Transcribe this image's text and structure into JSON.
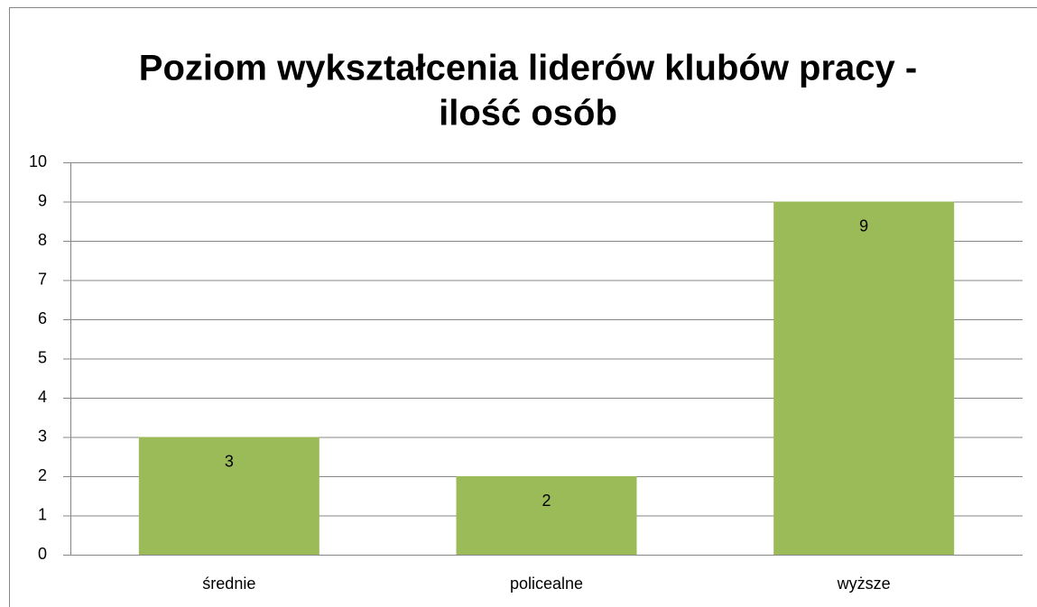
{
  "chart_data": {
    "type": "bar",
    "title": [
      "Poziom wykształcenia liderów klubów pracy -",
      "ilość osób"
    ],
    "categories": [
      "średnie",
      "policealne",
      "wyższe"
    ],
    "values": [
      3,
      2,
      9
    ],
    "color": "#9bbb59",
    "ylim": [
      0,
      10
    ],
    "yticks": [
      0,
      1,
      2,
      3,
      4,
      5,
      6,
      7,
      8,
      9,
      10
    ],
    "grid": true,
    "data_labels": true
  }
}
